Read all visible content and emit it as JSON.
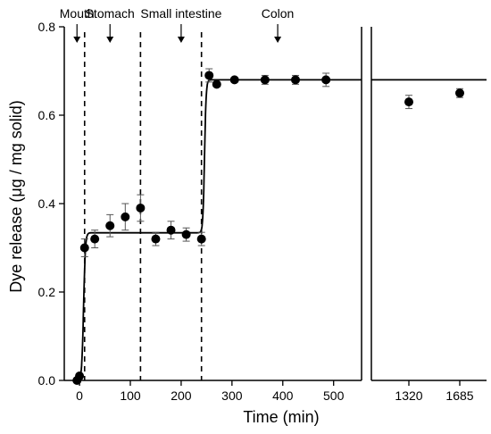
{
  "chart_data": {
    "type": "scatter",
    "xlabel": "Time (min)",
    "ylabel": "Dye release (μg / mg solid)",
    "ylim": [
      0,
      0.8
    ],
    "xlim_main": [
      -30,
      555
    ],
    "x_ticks_main": [
      0,
      100,
      200,
      300,
      400,
      500
    ],
    "x_ticks_break": [
      "1320",
      "1685"
    ],
    "y_ticks": [
      0.0,
      0.2,
      0.4,
      0.6,
      0.8
    ],
    "y_tick_labels": [
      "0.0",
      "0.2",
      "0.4",
      "0.6",
      "0.8"
    ],
    "grid": false,
    "axis_break": true,
    "phases": [
      {
        "label": "Mouth",
        "x": -5
      },
      {
        "label": "Stomach",
        "x": 60
      },
      {
        "label": "Small intestine",
        "x": 200
      },
      {
        "label": "Colon",
        "x": 390
      }
    ],
    "phase_boundaries": [
      10,
      120,
      240
    ],
    "points": [
      {
        "x": -5,
        "y": 0.0,
        "err": 0.005
      },
      {
        "x": 0,
        "y": 0.01,
        "err": 0.005
      },
      {
        "x": 10,
        "y": 0.3,
        "err": 0.02
      },
      {
        "x": 30,
        "y": 0.32,
        "err": 0.02
      },
      {
        "x": 60,
        "y": 0.35,
        "err": 0.025
      },
      {
        "x": 90,
        "y": 0.37,
        "err": 0.03
      },
      {
        "x": 120,
        "y": 0.39,
        "err": 0.03
      },
      {
        "x": 150,
        "y": 0.32,
        "err": 0.015
      },
      {
        "x": 180,
        "y": 0.34,
        "err": 0.02
      },
      {
        "x": 210,
        "y": 0.33,
        "err": 0.015
      },
      {
        "x": 240,
        "y": 0.32,
        "err": 0.015
      },
      {
        "x": 255,
        "y": 0.69,
        "err": 0.015
      },
      {
        "x": 270,
        "y": 0.67,
        "err": 0.005
      },
      {
        "x": 305,
        "y": 0.68,
        "err": 0.005
      },
      {
        "x": 365,
        "y": 0.68,
        "err": 0.01
      },
      {
        "x": 425,
        "y": 0.68,
        "err": 0.01
      },
      {
        "x": 485,
        "y": 0.68,
        "err": 0.015
      }
    ],
    "break_points": [
      {
        "x_label": "1320",
        "y": 0.63,
        "err": 0.015
      },
      {
        "x_label": "1685",
        "y": 0.65,
        "err": 0.01
      }
    ],
    "fit_levels": [
      0.0,
      0.334,
      0.68
    ]
  }
}
